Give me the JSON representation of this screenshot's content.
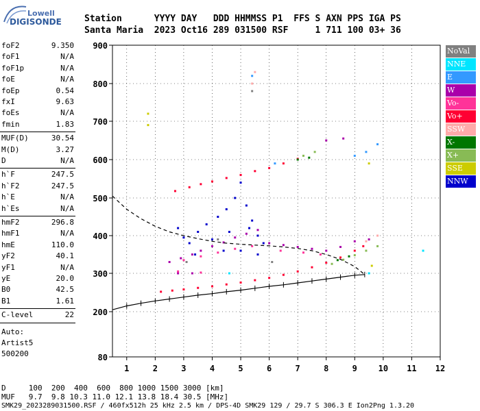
{
  "logo": {
    "top": "Lowell",
    "bottom": "DIGISONDE"
  },
  "header": {
    "row1": "Station      YYYY DAY   DDD HHMMSS P1  FFS S AXN PPS IGA PS",
    "row2": "Santa Maria  2023 Oct16 289 031500 RSF     1 711 100 03+ 36"
  },
  "params": [
    {
      "name": "foF2",
      "value": "9.350"
    },
    {
      "name": "foF1",
      "value": "N/A"
    },
    {
      "name": "foF1p",
      "value": "N/A"
    },
    {
      "name": "foE",
      "value": "N/A"
    },
    {
      "name": "foEp",
      "value": "0.54"
    },
    {
      "name": "fxI",
      "value": "9.63"
    },
    {
      "name": "foEs",
      "value": "N/A"
    },
    {
      "name": "fmin",
      "value": "1.83"
    },
    {
      "name": "MUF(D)",
      "value": "30.54"
    },
    {
      "name": "M(D)",
      "value": "3.27"
    },
    {
      "name": "D",
      "value": "N/A"
    },
    {
      "name": "h`F",
      "value": "247.5"
    },
    {
      "name": "h`F2",
      "value": "247.5"
    },
    {
      "name": "h`E",
      "value": "N/A"
    },
    {
      "name": "h`Es",
      "value": "N/A"
    },
    {
      "name": "hmF2",
      "value": "296.8"
    },
    {
      "name": "hmF1",
      "value": "N/A"
    },
    {
      "name": "hmE",
      "value": "110.0"
    },
    {
      "name": "yF2",
      "value": "40.1"
    },
    {
      "name": "yF1",
      "value": "N/A"
    },
    {
      "name": "yE",
      "value": "20.0"
    },
    {
      "name": "B0",
      "value": "42.5"
    },
    {
      "name": "B1",
      "value": "1.61"
    },
    {
      "name": "C-level",
      "value": "22"
    }
  ],
  "auto": [
    "Auto:",
    "Artist5",
    "500200"
  ],
  "legend": [
    {
      "label": "NoVal",
      "color": "#808080"
    },
    {
      "label": "NNE",
      "color": "#00e5ff"
    },
    {
      "label": "E",
      "color": "#3399ff"
    },
    {
      "label": "W",
      "color": "#aa00aa"
    },
    {
      "label": "Vo-",
      "color": "#ff3399"
    },
    {
      "label": "Vo+",
      "color": "#ff0033"
    },
    {
      "label": "SSW",
      "color": "#ffaaaa"
    },
    {
      "label": "X-",
      "color": "#007700"
    },
    {
      "label": "X+",
      "color": "#88bb55"
    },
    {
      "label": "SSE",
      "color": "#cccc00"
    },
    {
      "label": "NNW",
      "color": "#0000cc"
    }
  ],
  "footer": {
    "line1": "D     100  200  400  600  800 1000 1500 3000 [km]",
    "line2": "MUF   9.7  9.8 10.3 11.0 12.1 13.8 18.4 30.5 [MHz]",
    "line3": "SMK29_2023289031500.RSF / 460fx512h 25 kHz 2.5 km / DPS-4D SMK29 129 / 29.7 S 306.3 E Ion2Png 1.3.20"
  },
  "chart_data": {
    "type": "scatter",
    "xlabel": "",
    "ylabel": "",
    "xlim": [
      0.5,
      12
    ],
    "ylim": [
      80,
      900
    ],
    "x_ticks": [
      "1",
      "2",
      "3",
      "4",
      "5",
      "6",
      "7",
      "8",
      "9",
      "10",
      "11",
      "12"
    ],
    "y_ticks": [
      "80",
      "200",
      "300",
      "400",
      "500",
      "600",
      "700",
      "800",
      "900"
    ],
    "series": [
      {
        "name": "Vo+",
        "color": "#ff0033",
        "points": [
          [
            2.2,
            252
          ],
          [
            2.6,
            255
          ],
          [
            3.0,
            258
          ],
          [
            3.5,
            262
          ],
          [
            4.0,
            266
          ],
          [
            4.5,
            271
          ],
          [
            5.0,
            276
          ],
          [
            5.5,
            282
          ],
          [
            6.0,
            288
          ],
          [
            6.5,
            296
          ],
          [
            7.0,
            305
          ],
          [
            7.5,
            316
          ],
          [
            8.0,
            328
          ],
          [
            8.5,
            342
          ],
          [
            9.0,
            360
          ],
          [
            9.3,
            372
          ],
          [
            2.7,
            518
          ],
          [
            3.2,
            528
          ],
          [
            3.6,
            536
          ],
          [
            4.0,
            543
          ],
          [
            4.5,
            552
          ],
          [
            5.0,
            560
          ],
          [
            5.5,
            570
          ],
          [
            6.0,
            578
          ],
          [
            6.5,
            590
          ],
          [
            7.0,
            602
          ]
        ]
      },
      {
        "name": "X+",
        "color": "#88bb55",
        "points": [
          [
            8.2,
            325
          ],
          [
            8.6,
            336
          ],
          [
            9.0,
            348
          ],
          [
            9.4,
            360
          ],
          [
            9.8,
            372
          ],
          [
            7.2,
            610
          ],
          [
            7.6,
            620
          ]
        ]
      },
      {
        "name": "NNW",
        "color": "#0000cc",
        "points": [
          [
            2.8,
            420
          ],
          [
            3.0,
            395
          ],
          [
            3.2,
            380
          ],
          [
            3.5,
            410
          ],
          [
            3.8,
            430
          ],
          [
            4.2,
            450
          ],
          [
            4.5,
            470
          ],
          [
            4.8,
            500
          ],
          [
            5.0,
            540
          ],
          [
            5.2,
            480
          ],
          [
            5.4,
            440
          ],
          [
            5.6,
            400
          ],
          [
            5.8,
            380
          ],
          [
            4.0,
            390
          ],
          [
            4.4,
            360
          ],
          [
            5.0,
            360
          ],
          [
            5.3,
            420
          ],
          [
            4.6,
            410
          ],
          [
            5.6,
            350
          ],
          [
            3.4,
            350
          ]
        ]
      },
      {
        "name": "W",
        "color": "#aa00aa",
        "points": [
          [
            2.5,
            330
          ],
          [
            2.9,
            340
          ],
          [
            3.3,
            350
          ],
          [
            3.6,
            360
          ],
          [
            4.0,
            372
          ],
          [
            4.4,
            382
          ],
          [
            4.8,
            395
          ],
          [
            5.2,
            405
          ],
          [
            5.6,
            415
          ],
          [
            6.0,
            380
          ],
          [
            6.5,
            375
          ],
          [
            7.0,
            370
          ],
          [
            7.5,
            365
          ],
          [
            8.0,
            360
          ],
          [
            8.5,
            370
          ],
          [
            9.0,
            385
          ],
          [
            9.5,
            390
          ],
          [
            2.8,
            300
          ],
          [
            3.3,
            300
          ],
          [
            8.0,
            650
          ],
          [
            8.6,
            655
          ]
        ]
      },
      {
        "name": "Vo-",
        "color": "#ff3399",
        "points": [
          [
            3.0,
            335
          ],
          [
            3.6,
            345
          ],
          [
            4.2,
            355
          ],
          [
            4.8,
            365
          ],
          [
            5.4,
            372
          ],
          [
            6.4,
            360
          ],
          [
            7.2,
            355
          ],
          [
            7.8,
            350
          ],
          [
            2.8,
            305
          ],
          [
            3.6,
            302
          ]
        ]
      },
      {
        "name": "E",
        "color": "#3399ff",
        "points": [
          [
            9.0,
            610
          ],
          [
            9.4,
            620
          ],
          [
            9.8,
            640
          ],
          [
            5.4,
            820
          ],
          [
            6.2,
            590
          ]
        ]
      },
      {
        "name": "SSE",
        "color": "#cccc00",
        "points": [
          [
            1.75,
            690
          ],
          [
            1.75,
            720
          ],
          [
            9.5,
            590
          ],
          [
            9.6,
            320
          ]
        ]
      },
      {
        "name": "X-",
        "color": "#007700",
        "points": [
          [
            7.0,
            600
          ],
          [
            7.4,
            605
          ],
          [
            8.4,
            335
          ],
          [
            8.8,
            345
          ]
        ]
      },
      {
        "name": "SSW",
        "color": "#ffaaaa",
        "points": [
          [
            5.4,
            800
          ],
          [
            5.5,
            830
          ],
          [
            9.4,
            385
          ],
          [
            9.8,
            400
          ]
        ]
      },
      {
        "name": "NNE",
        "color": "#00e5ff",
        "points": [
          [
            4.6,
            300
          ],
          [
            9.5,
            300
          ],
          [
            11.4,
            360
          ]
        ]
      },
      {
        "name": "NoVal",
        "color": "#808080",
        "points": [
          [
            5.4,
            780
          ],
          [
            3.1,
            330
          ],
          [
            6.1,
            330
          ],
          [
            4.2,
            390
          ]
        ]
      }
    ],
    "profile": [
      [
        0.5,
        205
      ],
      [
        1.0,
        215
      ],
      [
        1.5,
        222
      ],
      [
        2.0,
        228
      ],
      [
        2.5,
        233
      ],
      [
        3.0,
        238
      ],
      [
        3.5,
        243
      ],
      [
        4.0,
        247
      ],
      [
        4.5,
        252
      ],
      [
        5.0,
        256
      ],
      [
        5.5,
        261
      ],
      [
        6.0,
        266
      ],
      [
        6.5,
        270
      ],
      [
        7.0,
        275
      ],
      [
        7.5,
        280
      ],
      [
        8.0,
        285
      ],
      [
        8.5,
        290
      ],
      [
        9.0,
        295
      ],
      [
        9.35,
        296.8
      ]
    ],
    "profile_dashed": [
      [
        0.5,
        505
      ],
      [
        1.0,
        470
      ],
      [
        1.5,
        445
      ],
      [
        2.0,
        425
      ],
      [
        2.5,
        410
      ],
      [
        3.0,
        400
      ],
      [
        3.5,
        392
      ],
      [
        4.0,
        385
      ],
      [
        4.5,
        380
      ],
      [
        5.0,
        377
      ],
      [
        5.5,
        375
      ],
      [
        6.0,
        373
      ],
      [
        6.5,
        370
      ],
      [
        7.0,
        366
      ],
      [
        7.5,
        360
      ],
      [
        8.0,
        350
      ],
      [
        8.5,
        337
      ],
      [
        9.0,
        318
      ],
      [
        9.35,
        296.8
      ]
    ]
  }
}
